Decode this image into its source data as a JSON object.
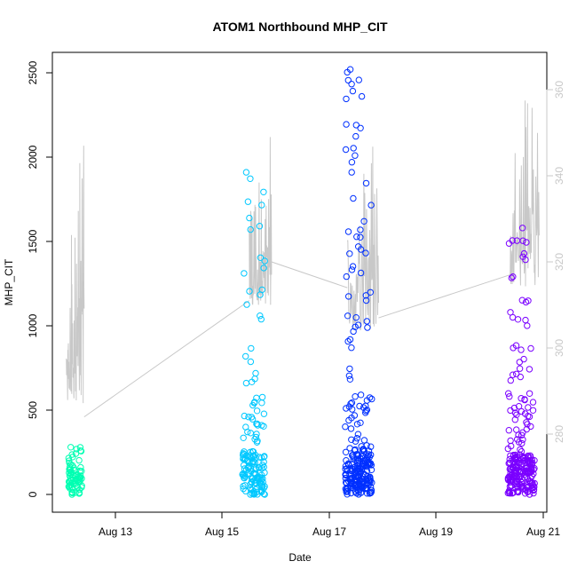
{
  "chart_data": {
    "type": "scatter",
    "title": "ATOM1 Northbound MHP_CIT",
    "xlabel": "Date",
    "ylabel": "MHP_CIT",
    "x_ticks": [
      "Aug 13",
      "Aug 15",
      "Aug 17",
      "Aug 19",
      "Aug 21"
    ],
    "y_ticks": [
      0,
      500,
      1000,
      1500,
      2000,
      2500
    ],
    "y_right_ticks": [
      280,
      300,
      320,
      340,
      360
    ],
    "xlim": [
      "2015-08-12",
      "2015-08-21"
    ],
    "ylim": [
      0,
      2530
    ],
    "y_right_lim": [
      266,
      364
    ],
    "grid": false,
    "point_colors": [
      "#00ffb2",
      "#00c8ff",
      "#0030ff",
      "#7a00ff"
    ],
    "secondary_line_color": "#c8c8c8",
    "clusters": [
      {
        "center": "2015-08-12 06:00",
        "width_h": 6,
        "n": 80,
        "ymax": 280,
        "color": "#00ffb2"
      },
      {
        "center": "2015-08-15 14:00",
        "width_h": 10,
        "n": 160,
        "ymax": 1910,
        "color": "#00c8ff"
      },
      {
        "center": "2015-08-17 13:00",
        "width_h": 12,
        "n": 260,
        "ymax": 2520,
        "color": "#0030ff"
      },
      {
        "center": "2015-08-20 14:00",
        "width_h": 12,
        "n": 240,
        "ymax": 1580,
        "color": "#7a00ff"
      }
    ],
    "secondary_segments": [
      {
        "start": "2015-08-12 02:00",
        "end": "2015-08-12 10:00",
        "low": 287,
        "high": 347
      },
      {
        "start": "2015-08-15 12:00",
        "end": "2015-08-15 22:00",
        "low": 310,
        "high": 349
      },
      {
        "start": "2015-08-17 08:00",
        "end": "2015-08-17 22:00",
        "low": 304,
        "high": 349
      },
      {
        "start": "2015-08-20 09:00",
        "end": "2015-08-20 22:00",
        "low": 314,
        "high": 362
      }
    ],
    "secondary_connectors": [
      {
        "from": [
          "2015-08-12 10:00",
          284
        ],
        "to": [
          "2015-08-15 12:00",
          311
        ]
      },
      {
        "from": [
          "2015-08-15 22:00",
          320
        ],
        "to": [
          "2015-08-17 08:00",
          314
        ]
      },
      {
        "from": [
          "2015-08-17 22:00",
          307
        ],
        "to": [
          "2015-08-20 09:00",
          317
        ]
      }
    ]
  }
}
